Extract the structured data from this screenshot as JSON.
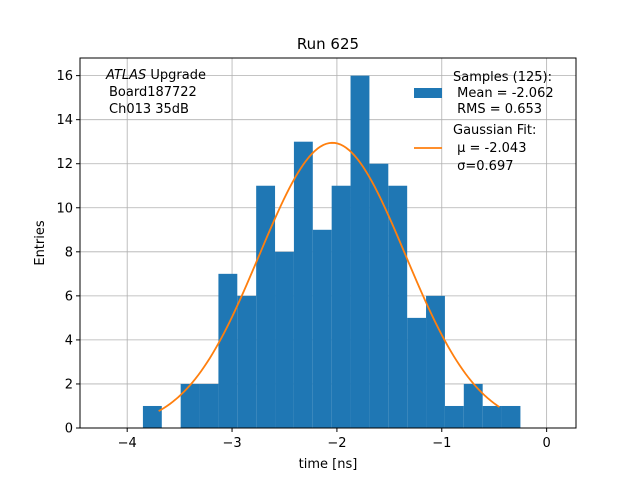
{
  "chart_data": {
    "type": "bar",
    "title": "Run 625",
    "xlabel": "time [ns]",
    "ylabel": "Entries",
    "xlim": [
      -4.45,
      0.28
    ],
    "ylim": [
      0,
      16.8
    ],
    "xticks": [
      -4,
      -3,
      -2,
      -1,
      0
    ],
    "xtick_labels": [
      "−4",
      "−3",
      "−2",
      "−1",
      "0"
    ],
    "yticks": [
      0,
      2,
      4,
      6,
      8,
      10,
      12,
      14,
      16
    ],
    "ytick_labels": [
      "0",
      "2",
      "4",
      "6",
      "8",
      "10",
      "12",
      "14",
      "16"
    ],
    "grid": true,
    "bar_color": "#1f77b4",
    "fit_color": "#ff7f0e",
    "bin_edges": [
      -3.85,
      -3.67,
      -3.49,
      -3.31,
      -3.13,
      -2.95,
      -2.77,
      -2.59,
      -2.41,
      -2.23,
      -2.05,
      -1.87,
      -1.69,
      -1.51,
      -1.33,
      -1.15,
      -0.97,
      -0.79,
      -0.61,
      -0.43,
      -0.25
    ],
    "counts": [
      1,
      0,
      2,
      2,
      7,
      6,
      11,
      8,
      13,
      9,
      11,
      16,
      12,
      11,
      5,
      6,
      1,
      2,
      1,
      1
    ],
    "fit": {
      "amplitude": 12.95,
      "mu": -2.043,
      "sigma": 0.697,
      "x_min": -3.7,
      "x_max": -0.45
    },
    "annotation": {
      "italic": "ATLAS",
      "first_rest": " Upgrade",
      "lines": [
        "Board187722",
        "Ch013 35dB"
      ]
    },
    "legend": {
      "position": "top-right",
      "hist_lines": [
        "Samples (125):",
        " Mean = -2.062",
        " RMS = 0.653"
      ],
      "fit_lines": [
        "Gaussian Fit:",
        " μ = -2.043",
        " σ=0.697"
      ]
    }
  }
}
